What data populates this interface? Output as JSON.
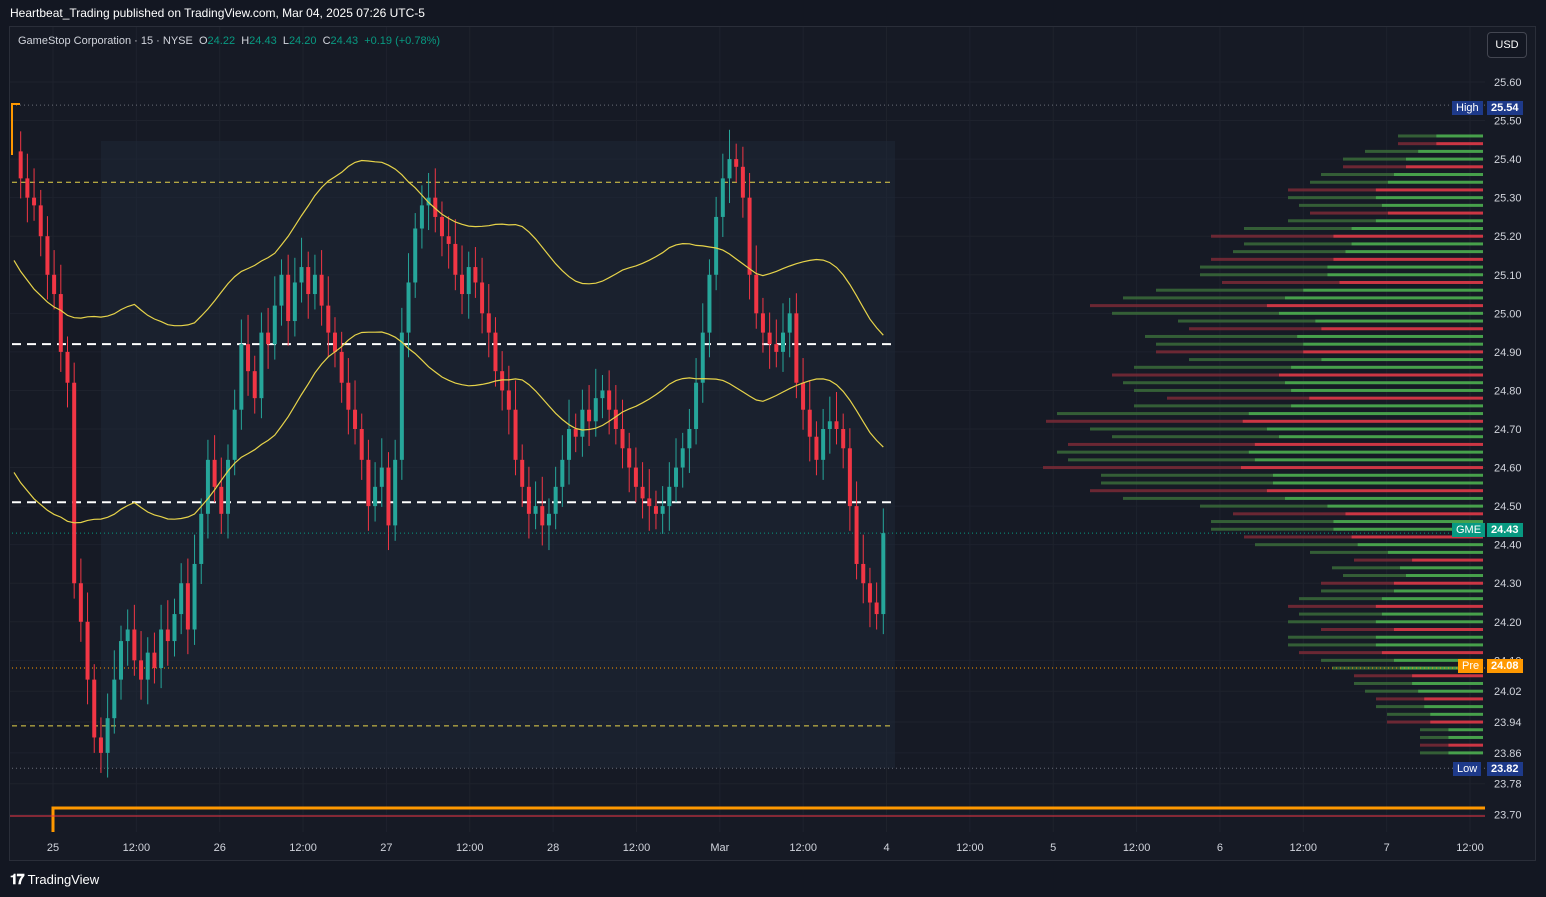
{
  "header": {
    "published": "Heartbeat_Trading published on TradingView.com, Mar 04, 2025 07:26 UTC-5"
  },
  "legend": {
    "symbol": "GameStop Corporation · 15 · NYSE",
    "o_label": "O",
    "o_value": "24.22",
    "h_label": "H",
    "h_value": "24.43",
    "l_label": "L",
    "l_value": "24.20",
    "c_label": "C",
    "c_value": "24.43",
    "change": "+0.19 (+0.78%)"
  },
  "currency_button": "USD",
  "footer": {
    "logo": "𝟏𝟕",
    "brand": "TradingView"
  },
  "colors": {
    "up": "#26a69a",
    "down": "#f23645",
    "vwap": "#e6d34a",
    "orange": "#ff9800",
    "high_tag": "#1e3a8a",
    "gme_tag": "#089981",
    "background": "#131722"
  },
  "price_tags": {
    "high": {
      "label": "High",
      "value": "25.54"
    },
    "last": {
      "label": "GME",
      "value": "24.43"
    },
    "pre": {
      "label": "Pre",
      "value": "24.08"
    },
    "low": {
      "label": "Low",
      "value": "23.82"
    }
  },
  "chart_data": {
    "type": "candlestick",
    "symbol": "GME",
    "interval": "15",
    "ylim": [
      23.66,
      25.74
    ],
    "y_ticks": [
      "25.60",
      "25.50",
      "25.40",
      "25.30",
      "25.20",
      "25.10",
      "25.00",
      "24.90",
      "24.80",
      "24.70",
      "24.60",
      "24.50",
      "24.40",
      "24.30",
      "24.20",
      "24.10",
      "24.02",
      "23.94",
      "23.86",
      "23.78",
      "23.70"
    ],
    "x_ticks": [
      "25",
      "12:00",
      "26",
      "12:00",
      "27",
      "12:00",
      "28",
      "12:00",
      "Mar",
      "12:00",
      "4",
      "12:00",
      "5",
      "12:00",
      "6",
      "12:00",
      "7",
      "12:00"
    ],
    "close_series": [
      25.42,
      25.35,
      25.3,
      25.28,
      25.2,
      25.1,
      25.05,
      24.9,
      24.82,
      24.3,
      24.2,
      24.05,
      23.9,
      23.86,
      23.95,
      24.05,
      24.15,
      24.18,
      24.1,
      24.05,
      24.12,
      24.08,
      24.18,
      24.15,
      24.22,
      24.3,
      24.18,
      24.35,
      24.48,
      24.62,
      24.55,
      24.48,
      24.62,
      24.75,
      24.92,
      24.85,
      24.78,
      24.95,
      24.92,
      25.02,
      25.1,
      24.98,
      25.08,
      25.12,
      25.05,
      25.1,
      25.02,
      24.95,
      24.9,
      24.82,
      24.75,
      24.7,
      24.62,
      24.5,
      24.55,
      24.6,
      24.45,
      24.62,
      24.95,
      25.08,
      25.22,
      25.28,
      25.3,
      25.25,
      25.2,
      25.18,
      25.1,
      25.05,
      25.12,
      25.08,
      25.0,
      24.95,
      24.85,
      24.8,
      24.75,
      24.62,
      24.55,
      24.48,
      24.5,
      24.45,
      24.48,
      24.55,
      24.62,
      24.7,
      24.68,
      24.75,
      24.72,
      24.78,
      24.8,
      24.75,
      24.7,
      24.65,
      24.6,
      24.55,
      24.52,
      24.5,
      24.48,
      24.5,
      24.55,
      24.6,
      24.65,
      24.7,
      24.82,
      24.95,
      25.1,
      25.25,
      25.35,
      25.4,
      25.38,
      25.3,
      25.1,
      25.0,
      24.95,
      24.92,
      24.9,
      24.95,
      25.0,
      24.82,
      24.75,
      24.68,
      24.62,
      24.7,
      24.72,
      24.7,
      24.65,
      24.5,
      24.35,
      24.3,
      24.25,
      24.22,
      24.43
    ],
    "horizontal_levels": [
      {
        "price": 25.34,
        "style": "dashed-yellow"
      },
      {
        "price": 24.92,
        "style": "dashed-white"
      },
      {
        "price": 24.51,
        "style": "dashed-white"
      },
      {
        "price": 23.93,
        "style": "dashed-yellow"
      },
      {
        "price": 25.54,
        "style": "dotted-high"
      },
      {
        "price": 23.82,
        "style": "dotted-low"
      },
      {
        "price": 24.08,
        "style": "dotted-pre"
      }
    ],
    "volume_profile_note": "volume-by-price histogram on right, green/red bins",
    "grid": true
  }
}
